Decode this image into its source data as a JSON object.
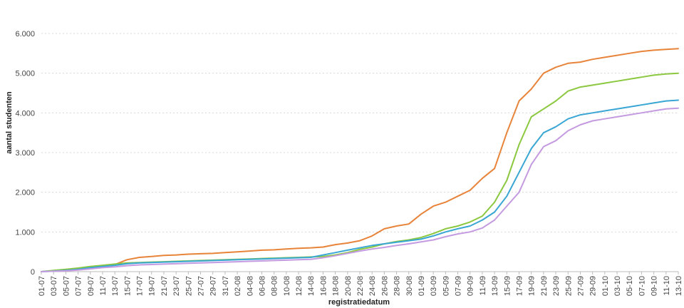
{
  "chart_data": {
    "type": "line",
    "xlabel": "registratiedatum",
    "ylabel": "aantal studenten",
    "ylim": [
      0,
      6000
    ],
    "yticks": [
      0,
      1000,
      2000,
      3000,
      4000,
      5000,
      6000
    ],
    "ytick_labels": [
      "0",
      "1.000",
      "2.000",
      "3.000",
      "4.000",
      "5.000",
      "6.000"
    ],
    "x": [
      "01-07",
      "03-07",
      "05-07",
      "07-07",
      "09-07",
      "11-07",
      "13-07",
      "15-07",
      "17-07",
      "19-07",
      "21-07",
      "23-07",
      "25-07",
      "27-07",
      "29-07",
      "31-07",
      "02-08",
      "04-08",
      "06-08",
      "08-08",
      "10-08",
      "12-08",
      "14-08",
      "16-08",
      "18-08",
      "20-08",
      "22-08",
      "24-08",
      "26-08",
      "28-08",
      "30-08",
      "01-09",
      "03-09",
      "05-09",
      "07-09",
      "09-09",
      "11-09",
      "13-09",
      "15-09",
      "17-09",
      "19-09",
      "21-09",
      "23-09",
      "25-09",
      "27-09",
      "29-09",
      "01-10",
      "03-10",
      "05-10",
      "07-10",
      "09-10",
      "11-10",
      "13-10"
    ],
    "grid": true,
    "legend": "none",
    "series": [
      {
        "color": "#e8843a",
        "values": [
          0,
          20,
          40,
          80,
          120,
          150,
          180,
          300,
          360,
          380,
          410,
          420,
          440,
          450,
          460,
          480,
          500,
          520,
          540,
          550,
          570,
          590,
          600,
          620,
          680,
          720,
          780,
          900,
          1080,
          1150,
          1200,
          1450,
          1650,
          1750,
          1900,
          2050,
          2350,
          2600,
          3500,
          4300,
          4600,
          5000,
          5150,
          5250,
          5280,
          5350,
          5400,
          5450,
          5500,
          5550,
          5580,
          5600,
          5620
        ]
      },
      {
        "color": "#8bc83f",
        "values": [
          0,
          30,
          60,
          90,
          130,
          160,
          190,
          220,
          230,
          240,
          250,
          260,
          270,
          280,
          290,
          300,
          310,
          320,
          330,
          340,
          350,
          360,
          370,
          380,
          420,
          480,
          560,
          620,
          700,
          760,
          800,
          860,
          960,
          1080,
          1150,
          1250,
          1400,
          1750,
          2300,
          3200,
          3900,
          4100,
          4300,
          4550,
          4650,
          4700,
          4750,
          4800,
          4850,
          4900,
          4950,
          4980,
          5000
        ]
      },
      {
        "color": "#39a6d4",
        "values": [
          0,
          15,
          30,
          60,
          100,
          130,
          160,
          200,
          220,
          230,
          240,
          250,
          260,
          270,
          280,
          290,
          300,
          310,
          320,
          330,
          340,
          350,
          360,
          420,
          480,
          540,
          600,
          660,
          700,
          740,
          780,
          820,
          900,
          1000,
          1080,
          1150,
          1300,
          1500,
          1900,
          2500,
          3100,
          3500,
          3650,
          3850,
          3950,
          4000,
          4050,
          4100,
          4150,
          4200,
          4250,
          4300,
          4320
        ]
      },
      {
        "color": "#c49be0",
        "values": [
          0,
          10,
          20,
          40,
          70,
          100,
          120,
          150,
          170,
          180,
          190,
          200,
          210,
          220,
          230,
          240,
          250,
          260,
          270,
          280,
          290,
          300,
          310,
          350,
          400,
          460,
          520,
          570,
          610,
          660,
          700,
          750,
          800,
          880,
          950,
          1000,
          1100,
          1300,
          1650,
          2000,
          2700,
          3150,
          3300,
          3550,
          3700,
          3800,
          3850,
          3900,
          3950,
          4000,
          4050,
          4100,
          4120
        ]
      }
    ]
  }
}
